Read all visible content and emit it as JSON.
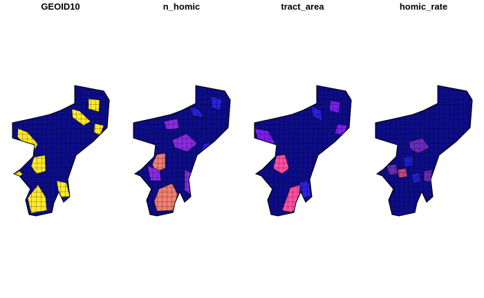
{
  "panels": [
    {
      "title": "GEOID10",
      "palette": {
        "base": "#0d0d8a",
        "mid": "#1f1fd0",
        "accent": "#7a1ff0",
        "hot": "#ffea2a"
      }
    },
    {
      "title": "n_homic",
      "palette": {
        "base": "#0d0d8a",
        "mid": "#2a20e0",
        "accent": "#8a2be2",
        "hot": "#f08070"
      }
    },
    {
      "title": "tract_area",
      "palette": {
        "base": "#0d0d8a",
        "mid": "#2d1fe0",
        "accent": "#7a1ff0",
        "hot": "#ff4fa3"
      }
    },
    {
      "title": "homic_rate",
      "palette": {
        "base": "#0d0d8a",
        "mid": "#1f1fd0",
        "accent": "#6b2bb8",
        "hot": "#c04a7a"
      }
    }
  ]
}
